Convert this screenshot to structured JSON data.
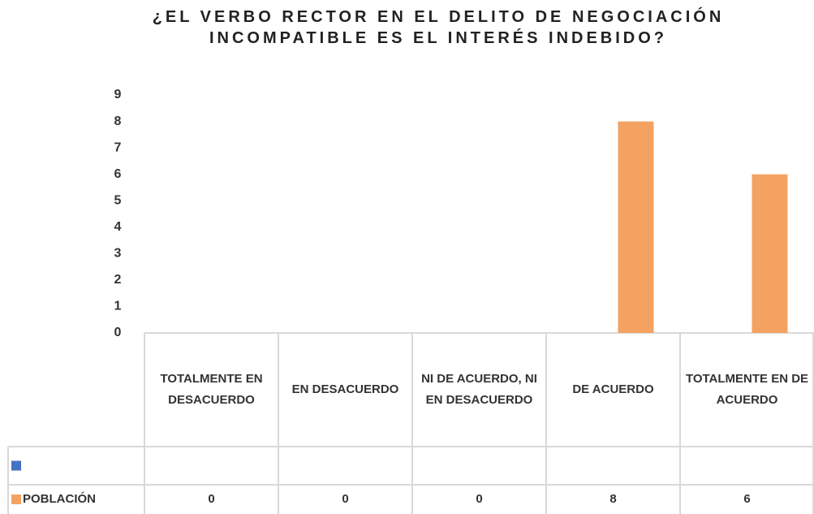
{
  "chart_data": {
    "type": "bar",
    "title": "¿EL VERBO RECTOR EN EL DELITO DE NEGOCIACIÓN INCOMPATIBLE ES EL INTERÉS INDEBIDO?",
    "categories": [
      "TOTALMENTE EN DESACUERDO",
      "EN DESACUERDO",
      "NI DE ACUERDO, NI EN DESACUERDO",
      "DE ACUERDO",
      "TOTALMENTE EN DE ACUERDO"
    ],
    "series": [
      {
        "color": "#4472c4",
        "values": [
          null,
          null,
          null,
          null,
          null
        ]
      },
      {
        "name": "POBLACIÓN",
        "color": "#f4a261",
        "values": [
          0,
          0,
          0,
          8,
          6
        ]
      }
    ],
    "ylim": [
      0,
      9
    ],
    "yticks": [
      0,
      1,
      2,
      3,
      4,
      5,
      6,
      7,
      8,
      9
    ],
    "grid": false,
    "data_table": true
  }
}
